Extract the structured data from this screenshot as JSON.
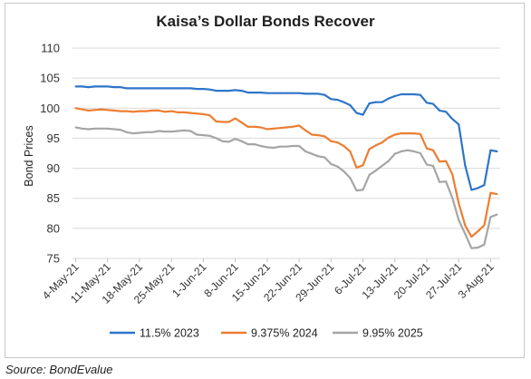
{
  "chart_data": {
    "type": "line",
    "title": "Kaisa’s Dollar Bonds Recover",
    "ylabel": "Bond Prices",
    "xlabel": "",
    "ylim": [
      75,
      110
    ],
    "yticks": [
      75,
      80,
      85,
      90,
      95,
      100,
      105,
      110
    ],
    "xticks": [
      "4-May-21",
      "11-May-21",
      "18-May-21",
      "25-May-21",
      "1-Jun-21",
      "8-Jun-21",
      "15-Jun-21",
      "22-Jun-21",
      "29-Jun-21",
      "6-Jul-21",
      "13-Jul-21",
      "20-Jul-21",
      "27-Jul-21",
      "3-Aug-21"
    ],
    "grid": "horizontal",
    "legend_position": "bottom",
    "source": "Source: BondEvalue",
    "x": [
      "4-May-21",
      "5-May-21",
      "6-May-21",
      "7-May-21",
      "10-May-21",
      "11-May-21",
      "12-May-21",
      "13-May-21",
      "14-May-21",
      "17-May-21",
      "18-May-21",
      "19-May-21",
      "20-May-21",
      "21-May-21",
      "24-May-21",
      "25-May-21",
      "26-May-21",
      "27-May-21",
      "28-May-21",
      "31-May-21",
      "1-Jun-21",
      "2-Jun-21",
      "3-Jun-21",
      "4-Jun-21",
      "7-Jun-21",
      "8-Jun-21",
      "9-Jun-21",
      "10-Jun-21",
      "11-Jun-21",
      "14-Jun-21",
      "15-Jun-21",
      "16-Jun-21",
      "17-Jun-21",
      "18-Jun-21",
      "21-Jun-21",
      "22-Jun-21",
      "23-Jun-21",
      "24-Jun-21",
      "25-Jun-21",
      "28-Jun-21",
      "29-Jun-21",
      "30-Jun-21",
      "1-Jul-21",
      "2-Jul-21",
      "5-Jul-21",
      "6-Jul-21",
      "7-Jul-21",
      "8-Jul-21",
      "9-Jul-21",
      "12-Jul-21",
      "13-Jul-21",
      "14-Jul-21",
      "15-Jul-21",
      "16-Jul-21",
      "19-Jul-21",
      "20-Jul-21",
      "21-Jul-21",
      "22-Jul-21",
      "23-Jul-21",
      "26-Jul-21",
      "27-Jul-21",
      "28-Jul-21",
      "29-Jul-21",
      "30-Jul-21",
      "2-Aug-21",
      "3-Aug-21",
      "4-Aug-21"
    ],
    "series": [
      {
        "name": "11.5% 2023",
        "color": "#2e75c8",
        "values": [
          103.6,
          103.6,
          103.5,
          103.6,
          103.6,
          103.6,
          103.5,
          103.5,
          103.3,
          103.3,
          103.3,
          103.3,
          103.3,
          103.3,
          103.3,
          103.3,
          103.3,
          103.3,
          103.3,
          103.2,
          103.2,
          103.1,
          102.9,
          102.9,
          102.9,
          103.0,
          102.9,
          102.6,
          102.6,
          102.6,
          102.5,
          102.5,
          102.5,
          102.5,
          102.5,
          102.5,
          102.4,
          102.4,
          102.4,
          102.2,
          101.5,
          101.4,
          101.0,
          100.5,
          99.2,
          98.9,
          100.8,
          101.0,
          101.0,
          101.6,
          102.0,
          102.3,
          102.3,
          102.3,
          102.2,
          100.9,
          100.7,
          99.6,
          99.4,
          98.2,
          97.3,
          90.5,
          86.4,
          86.7,
          87.2,
          93.0,
          92.8
        ]
      },
      {
        "name": "9.375% 2024",
        "color": "#ed7d31",
        "values": [
          100.0,
          99.8,
          99.6,
          99.7,
          99.8,
          99.7,
          99.6,
          99.5,
          99.5,
          99.4,
          99.5,
          99.5,
          99.6,
          99.6,
          99.4,
          99.5,
          99.3,
          99.3,
          99.2,
          99.1,
          99.0,
          98.8,
          97.8,
          97.7,
          97.7,
          98.3,
          97.6,
          96.9,
          96.9,
          96.8,
          96.5,
          96.6,
          96.7,
          96.8,
          96.9,
          97.1,
          96.3,
          95.6,
          95.5,
          95.3,
          94.5,
          94.3,
          93.7,
          92.8,
          90.1,
          90.5,
          93.2,
          93.8,
          94.3,
          95.1,
          95.6,
          95.8,
          95.8,
          95.8,
          95.7,
          93.3,
          93.0,
          91.1,
          91.2,
          89.0,
          84.2,
          80.5,
          78.6,
          79.5,
          80.5,
          85.9,
          85.7
        ]
      },
      {
        "name": "9.95% 2025",
        "color": "#a5a5a5",
        "values": [
          96.8,
          96.6,
          96.5,
          96.6,
          96.6,
          96.6,
          96.5,
          96.4,
          96.0,
          95.8,
          95.9,
          96.0,
          96.0,
          96.2,
          96.1,
          96.1,
          96.2,
          96.3,
          96.2,
          95.6,
          95.5,
          95.4,
          95.0,
          94.5,
          94.4,
          94.9,
          94.5,
          94.0,
          94.0,
          93.7,
          93.5,
          93.4,
          93.6,
          93.6,
          93.7,
          93.7,
          92.8,
          92.4,
          92.0,
          91.8,
          90.7,
          90.3,
          89.5,
          88.4,
          86.3,
          86.4,
          88.9,
          89.6,
          90.4,
          91.2,
          92.4,
          92.8,
          93.0,
          92.8,
          92.5,
          90.6,
          90.4,
          87.7,
          87.8,
          85.1,
          81.4,
          79.1,
          76.7,
          76.8,
          77.3,
          81.9,
          82.3
        ]
      }
    ]
  }
}
